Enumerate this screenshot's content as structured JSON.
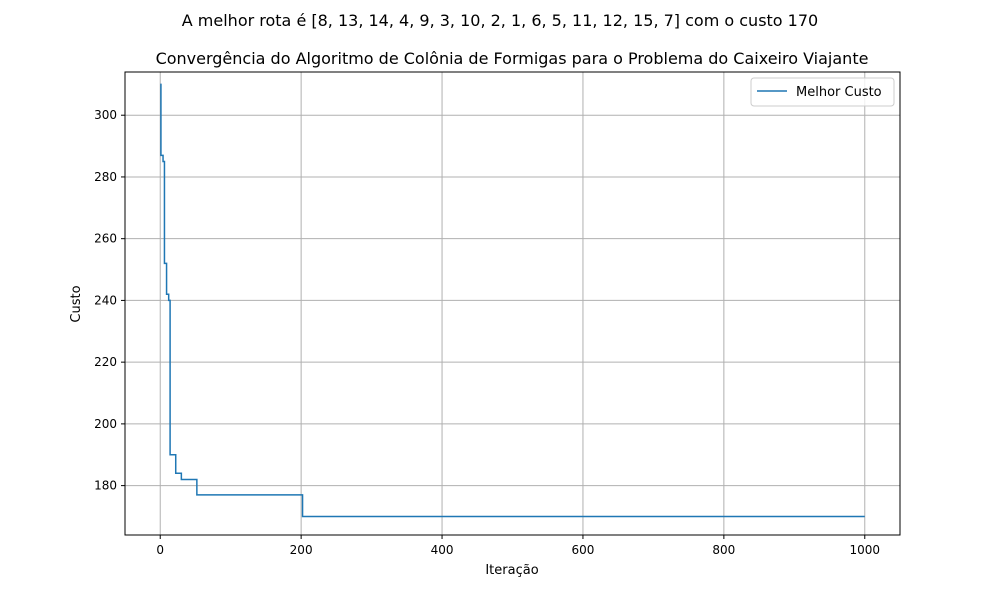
{
  "figure": {
    "suptitle": "A melhor rota é [8, 13, 14, 4, 9, 3, 10, 2, 1, 6, 5, 11, 12, 15, 7] com o custo 170"
  },
  "chart_data": {
    "type": "line",
    "title": "Convergência do Algoritmo de Colônia de Formigas para o Problema do Caixeiro Viajante",
    "xlabel": "Iteração",
    "ylabel": "Custo",
    "xlim": [
      -50,
      1050
    ],
    "ylim": [
      164,
      314
    ],
    "xticks": [
      0,
      200,
      400,
      600,
      800,
      1000
    ],
    "yticks": [
      180,
      200,
      220,
      240,
      260,
      280,
      300
    ],
    "grid": true,
    "legend_position": "top-right",
    "series": [
      {
        "name": "Melhor Custo",
        "color": "#1f77b4",
        "step": true,
        "points": [
          [
            0,
            310
          ],
          [
            1,
            287
          ],
          [
            4,
            285
          ],
          [
            6,
            252
          ],
          [
            9,
            242
          ],
          [
            12,
            240
          ],
          [
            14,
            190
          ],
          [
            22,
            184
          ],
          [
            30,
            182
          ],
          [
            52,
            177
          ],
          [
            202,
            170
          ],
          [
            1000,
            170
          ]
        ]
      }
    ]
  }
}
